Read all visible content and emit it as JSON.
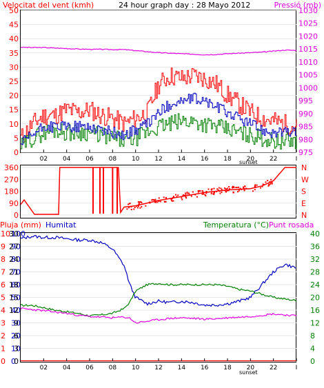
{
  "chart_data": [
    {
      "type": "line",
      "title": "24 hour graph day : 28 Mayo 2012",
      "left_label": "Velocitat del vent (kmh)",
      "right_label": "Pressió (mb)",
      "x_ticks": [
        "02",
        "04",
        "06",
        "08",
        "10",
        "12",
        "14",
        "16",
        "18",
        "20",
        "22",
        "I"
      ],
      "x_annotation": "sunset",
      "ylim_left": [
        0,
        50
      ],
      "yticks_left": [
        "0",
        "5",
        "10",
        "15",
        "20",
        "25",
        "30",
        "35",
        "40",
        "45",
        "50"
      ],
      "ylim_right": [
        975,
        1030
      ],
      "yticks_right": [
        "975",
        "980",
        "985",
        "990",
        "995",
        "1000",
        "1005",
        "1010",
        "1015",
        "1020",
        "1025",
        "1030"
      ],
      "grid": true,
      "colors": {
        "gust": "#ff0000",
        "wind": "#0000c0",
        "direction_avg": "#008000",
        "pressure": "#e000e0",
        "left_axis": "#ff0000",
        "right_axis": "#e000e0"
      },
      "x_hours": [
        0,
        1,
        2,
        3,
        4,
        5,
        6,
        7,
        8,
        9,
        10,
        11,
        12,
        13,
        14,
        15,
        16,
        17,
        18,
        19,
        20,
        21,
        22,
        23,
        24
      ],
      "series": [
        {
          "key": "gust",
          "axis": "left",
          "values": [
            5,
            10,
            13,
            13,
            15,
            14,
            15,
            13,
            12,
            10,
            12,
            14,
            24,
            27,
            26,
            27,
            26,
            24,
            20,
            17,
            14,
            12,
            11,
            10,
            9
          ]
        },
        {
          "key": "wind",
          "axis": "left",
          "values": [
            3,
            6,
            9,
            9,
            9,
            9,
            9,
            8,
            7,
            6,
            8,
            10,
            14,
            17,
            18,
            19,
            18,
            16,
            14,
            12,
            10,
            8,
            7,
            7,
            7
          ]
        },
        {
          "key": "direction_avg",
          "axis": "left",
          "values": [
            2,
            5,
            7,
            8,
            7,
            7,
            7,
            6,
            5,
            4,
            5,
            7,
            9,
            10,
            11,
            11,
            10,
            9,
            8,
            7,
            6,
            5,
            4,
            4,
            4
          ]
        },
        {
          "key": "pressure",
          "axis": "right",
          "values": [
            1015.7,
            1015.6,
            1015.6,
            1015.4,
            1015.2,
            1015.0,
            1014.9,
            1014.9,
            1014.8,
            1014.8,
            1014.4,
            1014.0,
            1013.6,
            1013.4,
            1013.2,
            1013.0,
            1012.8,
            1012.9,
            1013.2,
            1013.4,
            1013.6,
            1013.8,
            1014.2,
            1014.6,
            1014.5
          ]
        }
      ]
    },
    {
      "type": "line",
      "right_letters": [
        "N",
        "W",
        "S",
        "E",
        "N"
      ],
      "yticks": [
        "0",
        "90",
        "180",
        "270",
        "360"
      ],
      "ylim": [
        0,
        360
      ],
      "x_ticks": [
        "02",
        "04",
        "06",
        "08",
        "10",
        "12",
        "14",
        "16",
        "18",
        "20",
        "22",
        "I"
      ],
      "x_hours": [
        0,
        0.3,
        1.2,
        3.3,
        3.4,
        6,
        8.5,
        8.7,
        9,
        10,
        12,
        14,
        16,
        18,
        20,
        21,
        22,
        22.4,
        23,
        24
      ],
      "series": [
        {
          "key": "wind_direction",
          "values": [
            80,
            115,
            5,
            5,
            360,
            360,
            360,
            20,
            60,
            70,
            110,
            140,
            170,
            190,
            200,
            220,
            260,
            300,
            360,
            360
          ]
        }
      ]
    },
    {
      "type": "line",
      "labels": {
        "rain": "Pluja (mm)",
        "humidity": "Humitat",
        "temperature": "Temperatura (°C)",
        "dewpoint": "Punt rosada"
      },
      "x_ticks": [
        "02",
        "04",
        "06",
        "08",
        "10",
        "12",
        "14",
        "16",
        "18",
        "20",
        "22",
        "I"
      ],
      "x_annotation": "sunset",
      "yticks_rain": [
        "0",
        "1",
        "2",
        "3",
        "4",
        "5",
        "6",
        "7",
        "8",
        "9",
        "10"
      ],
      "yticks_humidity": [
        "0",
        "10",
        "20",
        "30",
        "40",
        "50",
        "60",
        "70",
        "80",
        "90",
        "100"
      ],
      "yticks_inner": [
        "0",
        "3",
        "6",
        "9",
        "12",
        "15",
        "18",
        "21",
        "24",
        "27",
        "30"
      ],
      "yticks_temp": [
        "0",
        "4",
        "8",
        "12",
        "16",
        "20",
        "24",
        "28",
        "32",
        "36",
        "40"
      ],
      "ylim_humidity": [
        0,
        100
      ],
      "ylim_temp": [
        0,
        40
      ],
      "colors": {
        "rain": "#ff0000",
        "humidity": "#0000c0",
        "temperature": "#008000",
        "dewpoint": "#e000e0"
      },
      "x_hours": [
        0,
        1,
        2,
        3,
        4,
        5,
        6,
        7,
        8,
        9,
        9.5,
        10,
        11,
        12,
        13,
        14,
        15,
        16,
        17,
        18,
        19,
        20,
        21,
        22,
        23,
        24
      ],
      "series": [
        {
          "key": "humidity",
          "axis": "humidity",
          "values": [
            96,
            98,
            97,
            97,
            96,
            95,
            95,
            93,
            88,
            75,
            60,
            50,
            45,
            47,
            46,
            47,
            46,
            44,
            44,
            45,
            47,
            50,
            60,
            70,
            76,
            73
          ]
        },
        {
          "key": "temperature",
          "axis": "temp",
          "values": [
            17.5,
            17.5,
            16.8,
            16,
            15.5,
            15,
            14.2,
            14.5,
            15,
            16.5,
            18.5,
            22,
            24,
            24.4,
            24,
            24,
            24,
            24,
            24,
            23.5,
            22.5,
            22,
            21,
            20,
            19.5,
            19
          ]
        },
        {
          "key": "dewpoint",
          "axis": "temp",
          "values": [
            16.5,
            16.2,
            15.8,
            15.4,
            15,
            14.4,
            14,
            13.8,
            13.6,
            13.8,
            13.5,
            12,
            12.5,
            13,
            13.4,
            13.6,
            13.4,
            13.2,
            13.3,
            13.6,
            13.8,
            14,
            14.4,
            14.8,
            14.5,
            14.2
          ]
        },
        {
          "key": "rain",
          "axis": "rain",
          "values": [
            0,
            0,
            0,
            0,
            0,
            0,
            0,
            0,
            0,
            0,
            0,
            0,
            0,
            0,
            0,
            0,
            0,
            0,
            0,
            0,
            0,
            0,
            0,
            0,
            0,
            0
          ]
        }
      ]
    }
  ]
}
